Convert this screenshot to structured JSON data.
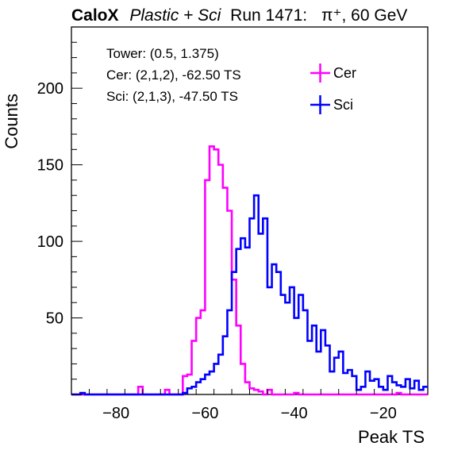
{
  "header": {
    "brand": "CaloX",
    "subtitle": "Plastic + Sci",
    "run": "Run 1471:",
    "beam": "π⁺, 60 GeV"
  },
  "info": {
    "tower": "Tower: (0.5, 1.375)",
    "cer": "Cer: (2,1,2), -62.50 TS",
    "sci": "Sci: (2,1,3), -47.50 TS"
  },
  "chart_data": {
    "type": "histogram",
    "xlabel": "Peak TS",
    "ylabel": "Counts",
    "xlim": [
      -90,
      -10
    ],
    "ylim": [
      0,
      240
    ],
    "bin_width": 1,
    "x_ticks": [
      -80,
      -60,
      -40,
      -20
    ],
    "y_ticks": [
      50,
      100,
      150,
      200
    ],
    "grid": false,
    "legend_position": "top-right",
    "series": [
      {
        "name": "Cer",
        "color": "#ff00ff",
        "bin_start": -90,
        "values": [
          0,
          0,
          0,
          0,
          0,
          0,
          0,
          0,
          0,
          0,
          0,
          0,
          0,
          0,
          0,
          5,
          0,
          0,
          0,
          0,
          0,
          3,
          0,
          0,
          0,
          12,
          13,
          35,
          50,
          55,
          140,
          162,
          160,
          150,
          135,
          120,
          75,
          45,
          20,
          8,
          4,
          3,
          2,
          0,
          3,
          0,
          0,
          0,
          0,
          0,
          1,
          0,
          0,
          0,
          0,
          0,
          0,
          0,
          0,
          0,
          0,
          0,
          0,
          0,
          0,
          0,
          0,
          0,
          0,
          0,
          0,
          0,
          0,
          1,
          0,
          0,
          0,
          0,
          0,
          0
        ]
      },
      {
        "name": "Sci",
        "color": "#0000ff",
        "bin_start": -90,
        "values": [
          0,
          0,
          1,
          0,
          0,
          0,
          0,
          0,
          0,
          0,
          0,
          0,
          0,
          0,
          0,
          0,
          0,
          0,
          0,
          0,
          0,
          0,
          0,
          0,
          0,
          1,
          4,
          5,
          8,
          10,
          13,
          15,
          20,
          26,
          38,
          55,
          80,
          95,
          102,
          96,
          115,
          130,
          105,
          115,
          70,
          85,
          80,
          65,
          60,
          70,
          50,
          65,
          55,
          35,
          45,
          28,
          42,
          32,
          15,
          24,
          28,
          14,
          16,
          12,
          3,
          5,
          15,
          9,
          10,
          5,
          3,
          12,
          8,
          6,
          5,
          10,
          4,
          9,
          3,
          5
        ]
      }
    ]
  }
}
